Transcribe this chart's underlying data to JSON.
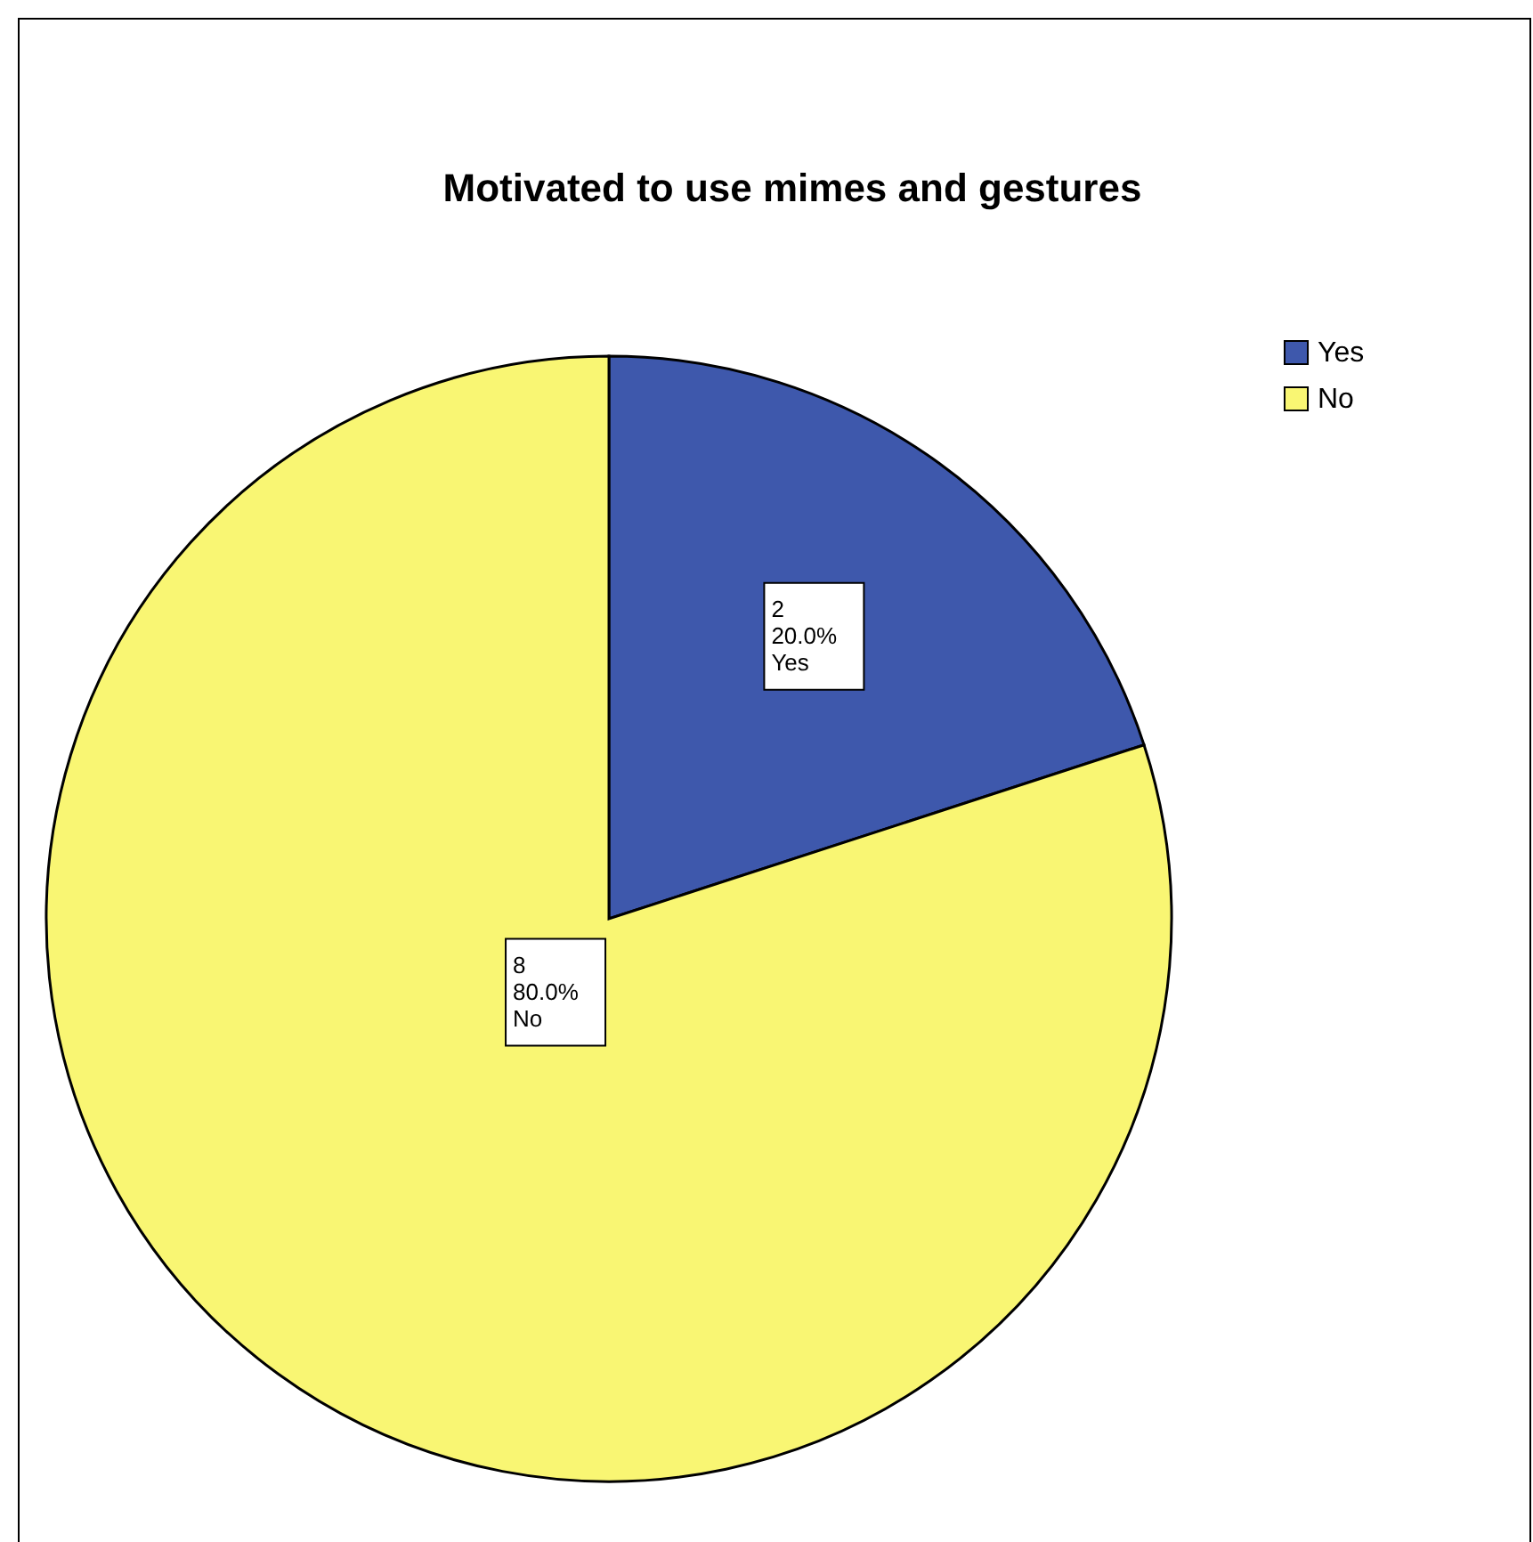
{
  "chart_data": {
    "type": "pie",
    "title": "Motivated to use mimes and gestures",
    "categories": [
      "Yes",
      "No"
    ],
    "values": [
      2,
      8
    ],
    "colors": [
      "#3e58ac",
      "#f9f673"
    ],
    "value_labels": [
      "2\n20.0%\nYes",
      "8\n80.0%\nNo"
    ],
    "legend": "top right"
  }
}
